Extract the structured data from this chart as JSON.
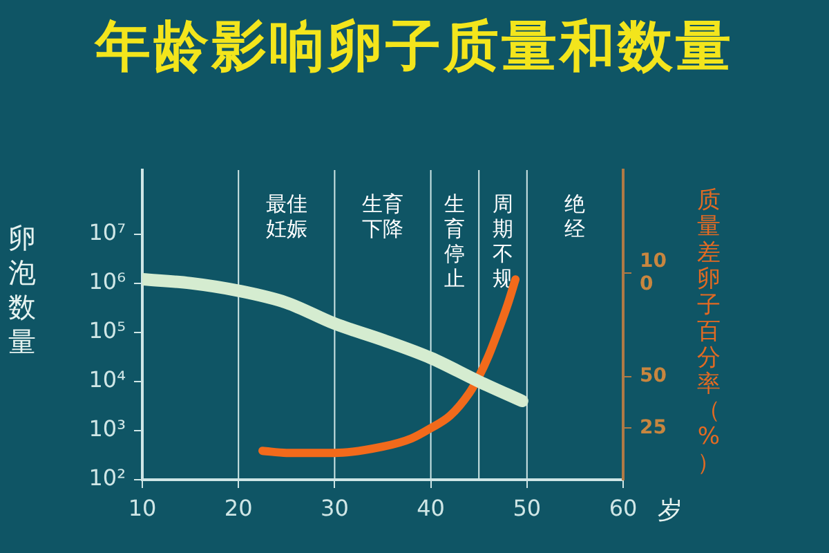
{
  "chart_data": {
    "type": "line",
    "title": "年龄影响卵子质量和数量",
    "ylabel": "卵泡数量",
    "y2label": "质量差卵子百分率（%）",
    "xlabel": "岁",
    "xlim": [
      10,
      60
    ],
    "xticks": [
      10,
      20,
      30,
      40,
      50,
      60
    ],
    "ylim": [
      100,
      200000000
    ],
    "yticks": [
      {
        "value": 100,
        "label": "10²"
      },
      {
        "value": 1000,
        "label": "10³"
      },
      {
        "value": 10000,
        "label": "10⁴"
      },
      {
        "value": 100000,
        "label": "10⁵"
      },
      {
        "value": 1000000,
        "label": "10⁶"
      },
      {
        "value": 10000000,
        "label": "10⁷"
      }
    ],
    "y2lim": [
      0,
      150
    ],
    "y2ticks": [
      25,
      50,
      {
        "value": 100,
        "label": "10\n0"
      }
    ],
    "log": "y",
    "grid": false,
    "legend": false,
    "marker": "none",
    "line_style": "solid",
    "series": [
      {
        "color": "#d5ecd0",
        "x": [
          10,
          15,
          20,
          25,
          30,
          35,
          40,
          45,
          49.5
        ],
        "values": [
          1200000,
          1000000,
          700000,
          400000,
          150000,
          70000,
          30000,
          10000,
          4000
        ]
      },
      {
        "color": "#f26a1b",
        "axis": "y2",
        "x": [
          22.5,
          25,
          30,
          35,
          38,
          40,
          42,
          44,
          45,
          46,
          47,
          48,
          48.8
        ],
        "values": [
          14,
          13,
          13,
          16,
          20,
          25,
          31,
          42,
          50,
          60,
          72,
          85,
          97
        ]
      }
    ],
    "ref_lines": [
      {
        "axis": "x",
        "value": 20,
        "label": "最佳妊娠"
      },
      {
        "axis": "x",
        "value": 30,
        "label": "生育下降"
      },
      {
        "axis": "x",
        "value": 40,
        "label": "生育停止"
      },
      {
        "axis": "x",
        "value": 45,
        "label": "周期不规"
      },
      {
        "axis": "x",
        "value": 50,
        "label": "绝经"
      }
    ]
  }
}
